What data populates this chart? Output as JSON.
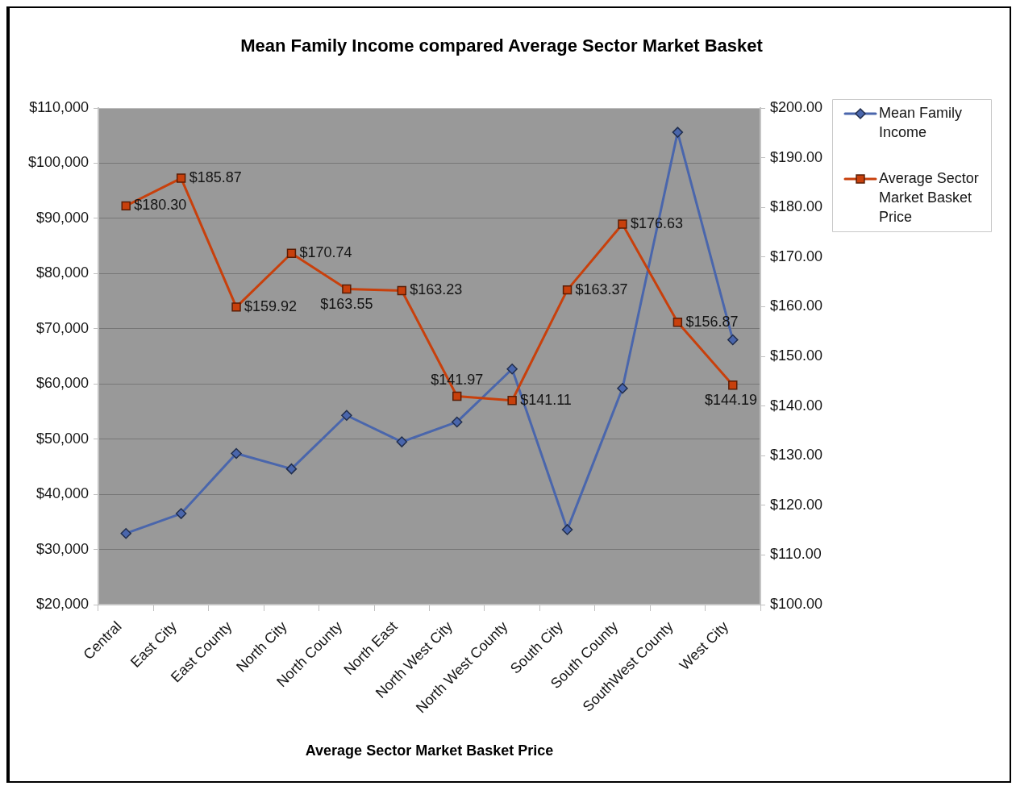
{
  "chart_data": {
    "type": "line",
    "title": "Mean Family Income compared Average Sector Market Basket",
    "xlabel": "Average Sector Market Basket Price",
    "categories": [
      "Central",
      "East City",
      "East County",
      "North City",
      "North County",
      "North East",
      "North West City",
      "North West County",
      "South City",
      "South County",
      "SouthWest County",
      "West City"
    ],
    "series": [
      {
        "name": "Mean Family Income",
        "color": "#4a66ac",
        "marker": "diamond",
        "values": [
          32900,
          36500,
          47400,
          44600,
          54300,
          49500,
          53100,
          62700,
          33600,
          59200,
          105600,
          68000
        ]
      },
      {
        "name": "Average Sector Market Basket Price",
        "color": "#c8400c",
        "marker": "square",
        "axis": "y2",
        "values": [
          180.3,
          185.87,
          159.92,
          170.74,
          163.55,
          163.23,
          141.97,
          141.11,
          163.37,
          176.63,
          156.87,
          144.19
        ],
        "value_labels": [
          "$180.30",
          "$185.87",
          "$159.92",
          "$170.74",
          "$163.55",
          "$163.23",
          "$141.97",
          "$141.11",
          "$163.37",
          "$176.63",
          "$156.87",
          "$144.19"
        ]
      }
    ],
    "ylim": [
      20000,
      110000
    ],
    "yticks": [
      {
        "value": 20000,
        "label": "$20,000"
      },
      {
        "value": 30000,
        "label": "$30,000"
      },
      {
        "value": 40000,
        "label": "$40,000"
      },
      {
        "value": 50000,
        "label": "$50,000"
      },
      {
        "value": 60000,
        "label": "$60,000"
      },
      {
        "value": 70000,
        "label": "$70,000"
      },
      {
        "value": 80000,
        "label": "$80,000"
      },
      {
        "value": 90000,
        "label": "$90,000"
      },
      {
        "value": 100000,
        "label": "$100,000"
      },
      {
        "value": 110000,
        "label": "$110,000"
      }
    ],
    "y2lim": [
      100,
      200
    ],
    "y2ticks": [
      {
        "value": 100,
        "label": "$100.00"
      },
      {
        "value": 110,
        "label": "$110.00"
      },
      {
        "value": 120,
        "label": "$120.00"
      },
      {
        "value": 130,
        "label": "$130.00"
      },
      {
        "value": 140,
        "label": "$140.00"
      },
      {
        "value": 150,
        "label": "$150.00"
      },
      {
        "value": 160,
        "label": "$160.00"
      },
      {
        "value": 170,
        "label": "$170.00"
      },
      {
        "value": 180,
        "label": "$180.00"
      },
      {
        "value": 190,
        "label": "$190.00"
      },
      {
        "value": 200,
        "label": "$200.00"
      }
    ],
    "grid": "y",
    "legend": "right"
  }
}
